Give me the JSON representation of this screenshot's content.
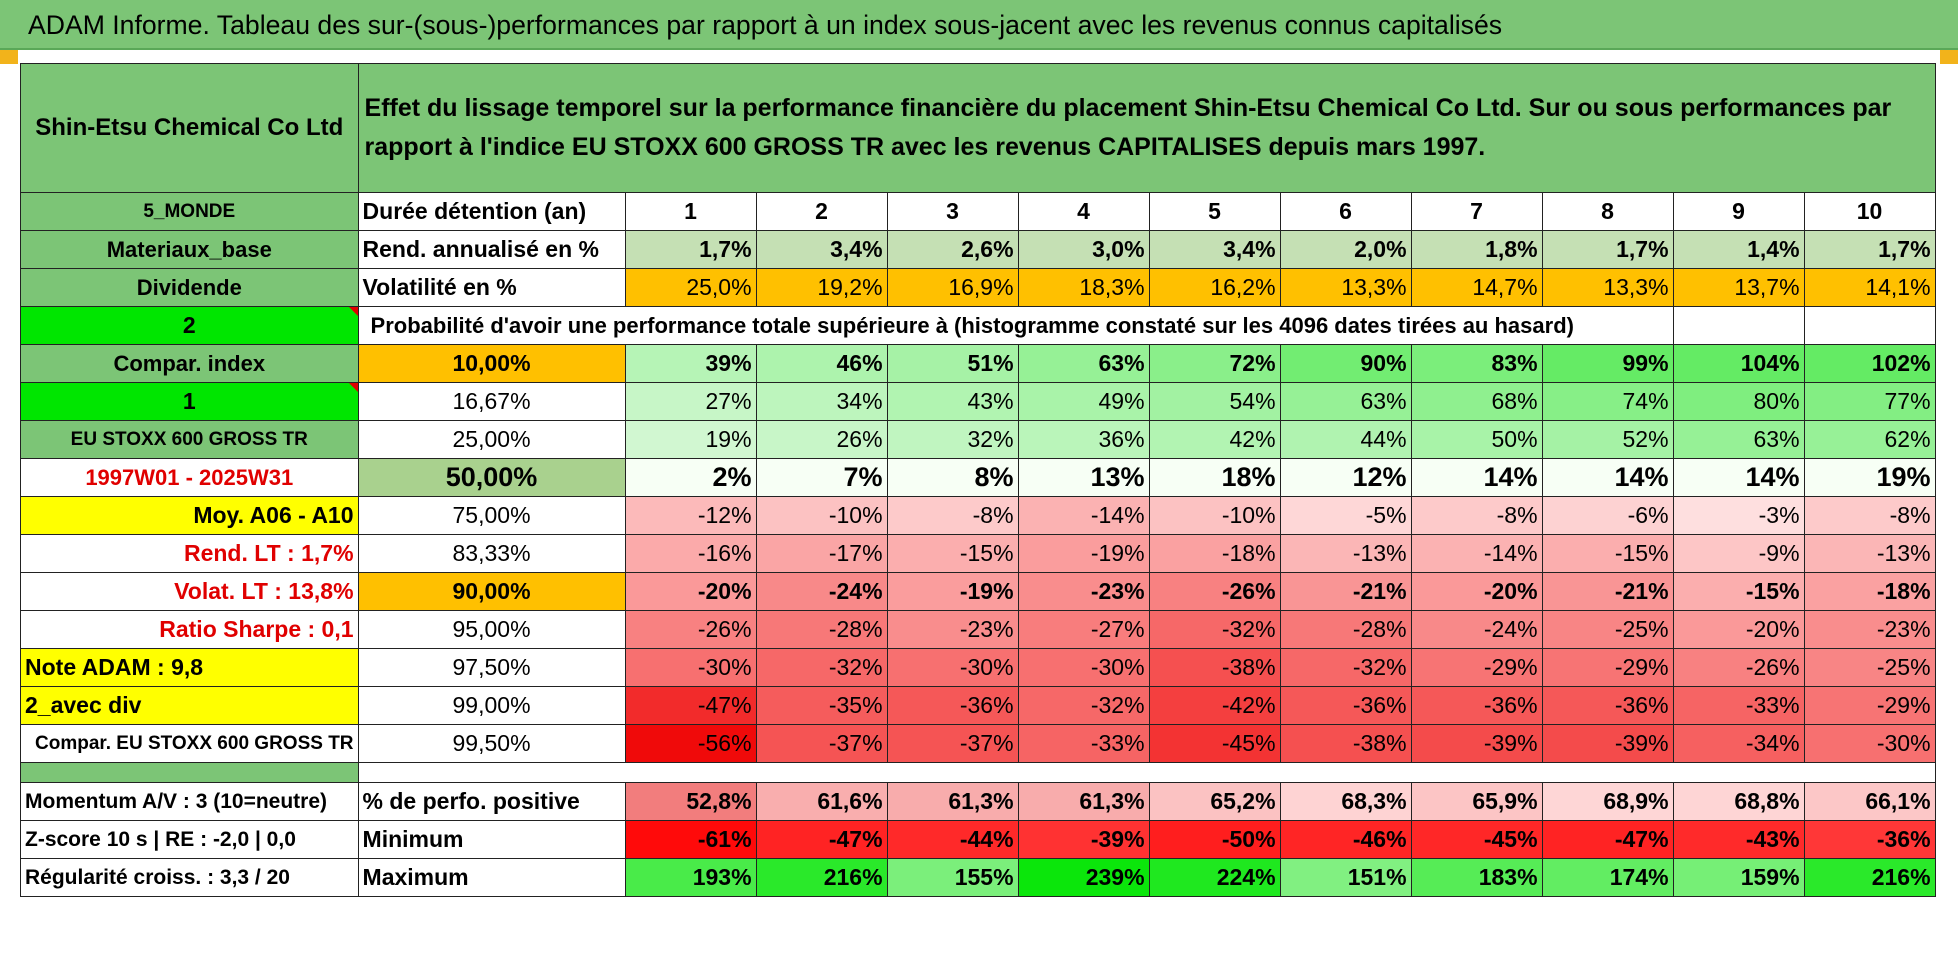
{
  "banner": {
    "title": "ADAM Informe. Tableau des sur-(sous-)performances par rapport à un index sous-jacent avec les revenus connus capitalisés"
  },
  "header": {
    "company": "Shin-Etsu Chemical Co Ltd",
    "description": "Effet du lissage temporel sur la performance financière du placement Shin-Etsu Chemical Co Ltd. Sur ou sous performances par rapport à l'indice EU STOXX 600 GROSS TR avec les revenus CAPITALISES depuis mars 1997."
  },
  "left": {
    "region": "5_MONDE",
    "sector": "Materiaux_base",
    "dividend": "Dividende",
    "param1": "2",
    "compar_index": "Compar. index",
    "param2": "1",
    "index_name": "EU STOXX 600 GROSS TR",
    "period": "1997W01 - 2025W31",
    "moy": "Moy. A06 - A10",
    "rend_lt": "Rend. LT :    1,7%",
    "volat_lt": "Volat. LT :    13,8%",
    "sharpe": "Ratio Sharpe :     0,1",
    "note": "Note ADAM : 9,8",
    "avec_div": "2_avec div",
    "compar_full": "Compar. EU STOXX 600 GROSS TR",
    "momentum": "Momentum A/V : 3 (10=neutre)",
    "zscore": "Z-score 10 s | RE : -2,0 | 0,0",
    "regularite": "Régularité croiss. : 3,3 / 20"
  },
  "labels": {
    "duree": "Durée détention (an)",
    "rend": "Rend. annualisé en %",
    "vol": "Volatilité en %",
    "proba": "Probabilité d'avoir une performance totale supérieure à (histogramme constaté sur les 4096 dates tirées au hasard)",
    "pct_positive": "% de perfo. positive",
    "minimum": "Minimum",
    "maximum": "Maximum"
  },
  "years": [
    "1",
    "2",
    "3",
    "4",
    "5",
    "6",
    "7",
    "8",
    "9",
    "10"
  ],
  "rend": [
    "1,7%",
    "3,4%",
    "2,6%",
    "3,0%",
    "3,4%",
    "2,0%",
    "1,8%",
    "1,7%",
    "1,4%",
    "1,7%"
  ],
  "vol": [
    "25,0%",
    "19,2%",
    "16,9%",
    "18,3%",
    "16,2%",
    "13,3%",
    "14,7%",
    "13,3%",
    "13,7%",
    "14,1%"
  ],
  "quantiles": [
    {
      "q": "10,00%",
      "v": [
        "39%",
        "46%",
        "51%",
        "63%",
        "72%",
        "90%",
        "83%",
        "99%",
        "104%",
        "102%"
      ]
    },
    {
      "q": "16,67%",
      "v": [
        "27%",
        "34%",
        "43%",
        "49%",
        "54%",
        "63%",
        "68%",
        "74%",
        "80%",
        "77%"
      ]
    },
    {
      "q": "25,00%",
      "v": [
        "19%",
        "26%",
        "32%",
        "36%",
        "42%",
        "44%",
        "50%",
        "52%",
        "63%",
        "62%"
      ]
    },
    {
      "q": "50,00%",
      "v": [
        "2%",
        "7%",
        "8%",
        "13%",
        "18%",
        "12%",
        "14%",
        "14%",
        "14%",
        "19%"
      ]
    },
    {
      "q": "75,00%",
      "v": [
        "-12%",
        "-10%",
        "-8%",
        "-14%",
        "-10%",
        "-5%",
        "-8%",
        "-6%",
        "-3%",
        "-8%"
      ]
    },
    {
      "q": "83,33%",
      "v": [
        "-16%",
        "-17%",
        "-15%",
        "-19%",
        "-18%",
        "-13%",
        "-14%",
        "-15%",
        "-9%",
        "-13%"
      ]
    },
    {
      "q": "90,00%",
      "v": [
        "-20%",
        "-24%",
        "-19%",
        "-23%",
        "-26%",
        "-21%",
        "-20%",
        "-21%",
        "-15%",
        "-18%"
      ]
    },
    {
      "q": "95,00%",
      "v": [
        "-26%",
        "-28%",
        "-23%",
        "-27%",
        "-32%",
        "-28%",
        "-24%",
        "-25%",
        "-20%",
        "-23%"
      ]
    },
    {
      "q": "97,50%",
      "v": [
        "-30%",
        "-32%",
        "-30%",
        "-30%",
        "-38%",
        "-32%",
        "-29%",
        "-29%",
        "-26%",
        "-25%"
      ]
    },
    {
      "q": "99,00%",
      "v": [
        "-47%",
        "-35%",
        "-36%",
        "-32%",
        "-42%",
        "-36%",
        "-36%",
        "-36%",
        "-33%",
        "-29%"
      ]
    },
    {
      "q": "99,50%",
      "v": [
        "-56%",
        "-37%",
        "-37%",
        "-33%",
        "-45%",
        "-38%",
        "-39%",
        "-39%",
        "-34%",
        "-30%"
      ]
    }
  ],
  "pct_positive": [
    "52,8%",
    "61,6%",
    "61,3%",
    "61,3%",
    "65,2%",
    "68,3%",
    "65,9%",
    "68,9%",
    "68,8%",
    "66,1%"
  ],
  "minimum": [
    "-61%",
    "-47%",
    "-44%",
    "-39%",
    "-50%",
    "-46%",
    "-45%",
    "-47%",
    "-43%",
    "-36%"
  ],
  "maximum": [
    "193%",
    "216%",
    "155%",
    "239%",
    "224%",
    "151%",
    "183%",
    "174%",
    "159%",
    "216%"
  ]
}
